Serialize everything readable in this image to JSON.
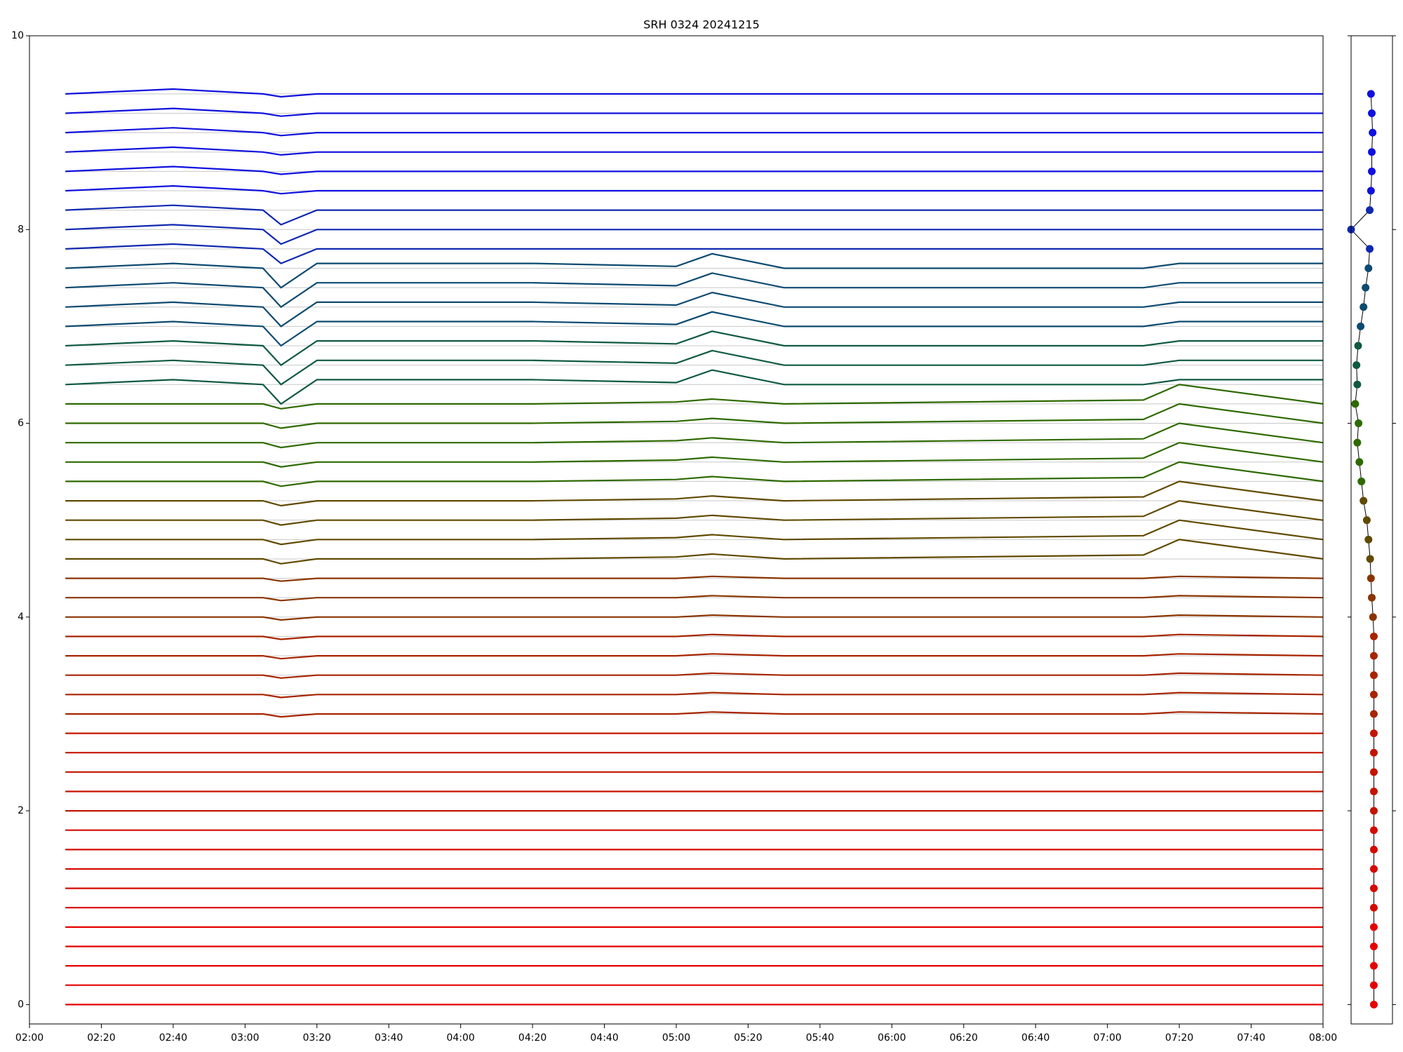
{
  "chart_data": [
    {
      "type": "line",
      "title": "SRH 0324 20241215",
      "x": [
        "02:10",
        "02:40",
        "03:05",
        "03:10",
        "03:20",
        "04:20",
        "05:00",
        "05:10",
        "05:30",
        "07:10",
        "07:20",
        "08:00"
      ],
      "xlim": [
        "02:00",
        "08:00"
      ],
      "xticks": [
        "02:00",
        "02:20",
        "02:40",
        "03:00",
        "03:20",
        "03:40",
        "04:00",
        "04:20",
        "04:40",
        "05:00",
        "05:20",
        "05:40",
        "06:00",
        "06:20",
        "06:40",
        "07:00",
        "07:20",
        "07:40",
        "08:00"
      ],
      "ylim": [
        -0.2,
        10
      ],
      "yticks": [
        0,
        2,
        4,
        6,
        8,
        10
      ],
      "grid": true,
      "series": [
        {
          "color": "#e60000",
          "values": [
            0,
            0,
            0,
            0,
            0,
            0,
            0,
            0,
            0,
            0,
            0,
            0
          ]
        },
        {
          "color": "#e60000",
          "values": [
            0.2,
            0.2,
            0.2,
            0.2,
            0.2,
            0.2,
            0.2,
            0.2,
            0.2,
            0.2,
            0.2,
            0.2
          ]
        },
        {
          "color": "#e60000",
          "values": [
            0.4,
            0.4,
            0.4,
            0.4,
            0.4,
            0.4,
            0.4,
            0.4,
            0.4,
            0.4,
            0.4,
            0.4
          ]
        },
        {
          "color": "#e60000",
          "values": [
            0.6,
            0.6,
            0.6,
            0.6,
            0.6,
            0.6,
            0.6,
            0.6,
            0.6,
            0.6,
            0.6,
            0.6
          ]
        },
        {
          "color": "#e60000",
          "values": [
            0.8,
            0.8,
            0.8,
            0.8,
            0.8,
            0.8,
            0.8,
            0.8,
            0.8,
            0.8,
            0.8,
            0.8
          ]
        },
        {
          "color": "#d50a00",
          "values": [
            1.0,
            1.0,
            1.0,
            1.0,
            1.0,
            1.0,
            1.0,
            1.0,
            1.0,
            1.0,
            1.0,
            1.0
          ]
        },
        {
          "color": "#d50a00",
          "values": [
            1.2,
            1.2,
            1.2,
            1.2,
            1.2,
            1.2,
            1.2,
            1.2,
            1.2,
            1.2,
            1.2,
            1.2
          ]
        },
        {
          "color": "#d50a00",
          "values": [
            1.4,
            1.4,
            1.4,
            1.4,
            1.4,
            1.4,
            1.4,
            1.4,
            1.4,
            1.4,
            1.4,
            1.4
          ]
        },
        {
          "color": "#d50a00",
          "values": [
            1.6,
            1.6,
            1.6,
            1.6,
            1.6,
            1.6,
            1.6,
            1.6,
            1.6,
            1.6,
            1.6,
            1.6
          ]
        },
        {
          "color": "#d50a00",
          "values": [
            1.8,
            1.8,
            1.8,
            1.8,
            1.8,
            1.8,
            1.8,
            1.8,
            1.8,
            1.8,
            1.8,
            1.8
          ]
        },
        {
          "color": "#c41400",
          "values": [
            2.0,
            2.0,
            2.0,
            2.0,
            2.0,
            2.0,
            2.0,
            2.0,
            2.0,
            2.0,
            2.0,
            2.0
          ]
        },
        {
          "color": "#c41400",
          "values": [
            2.2,
            2.2,
            2.2,
            2.2,
            2.2,
            2.2,
            2.2,
            2.2,
            2.2,
            2.2,
            2.2,
            2.2
          ]
        },
        {
          "color": "#c41400",
          "values": [
            2.4,
            2.4,
            2.4,
            2.4,
            2.4,
            2.4,
            2.4,
            2.4,
            2.4,
            2.4,
            2.4,
            2.4
          ]
        },
        {
          "color": "#c41400",
          "values": [
            2.6,
            2.6,
            2.6,
            2.6,
            2.6,
            2.6,
            2.6,
            2.6,
            2.6,
            2.6,
            2.6,
            2.6
          ]
        },
        {
          "color": "#c41400",
          "values": [
            2.8,
            2.8,
            2.8,
            2.8,
            2.8,
            2.8,
            2.8,
            2.8,
            2.8,
            2.8,
            2.8,
            2.8
          ]
        },
        {
          "color": "#a82400",
          "values": [
            3.0,
            3.0,
            3.0,
            2.97,
            3.0,
            3.0,
            3.0,
            3.02,
            3.0,
            3.0,
            3.02,
            3.0
          ]
        },
        {
          "color": "#a82400",
          "values": [
            3.2,
            3.2,
            3.2,
            3.17,
            3.2,
            3.2,
            3.2,
            3.22,
            3.2,
            3.2,
            3.22,
            3.2
          ]
        },
        {
          "color": "#a82400",
          "values": [
            3.4,
            3.4,
            3.4,
            3.37,
            3.4,
            3.4,
            3.4,
            3.42,
            3.4,
            3.4,
            3.42,
            3.4
          ]
        },
        {
          "color": "#a82400",
          "values": [
            3.6,
            3.6,
            3.6,
            3.57,
            3.6,
            3.6,
            3.6,
            3.62,
            3.6,
            3.6,
            3.62,
            3.6
          ]
        },
        {
          "color": "#a82400",
          "values": [
            3.8,
            3.8,
            3.8,
            3.77,
            3.8,
            3.8,
            3.8,
            3.82,
            3.8,
            3.8,
            3.82,
            3.8
          ]
        },
        {
          "color": "#8a3400",
          "values": [
            4.0,
            4.0,
            4.0,
            3.97,
            4.0,
            4.0,
            4.0,
            4.02,
            4.0,
            4.0,
            4.02,
            4.0
          ]
        },
        {
          "color": "#8a3400",
          "values": [
            4.2,
            4.2,
            4.2,
            4.17,
            4.2,
            4.2,
            4.2,
            4.22,
            4.2,
            4.2,
            4.22,
            4.2
          ]
        },
        {
          "color": "#8a3400",
          "values": [
            4.4,
            4.4,
            4.4,
            4.37,
            4.4,
            4.4,
            4.4,
            4.42,
            4.4,
            4.4,
            4.42,
            4.4
          ]
        },
        {
          "color": "#604a00",
          "values": [
            4.6,
            4.6,
            4.6,
            4.55,
            4.6,
            4.6,
            4.62,
            4.65,
            4.6,
            4.64,
            4.8,
            4.6
          ]
        },
        {
          "color": "#604a00",
          "values": [
            4.8,
            4.8,
            4.8,
            4.75,
            4.8,
            4.8,
            4.82,
            4.85,
            4.8,
            4.84,
            5.0,
            4.8
          ]
        },
        {
          "color": "#604a00",
          "values": [
            5.0,
            5.0,
            5.0,
            4.95,
            5.0,
            5.0,
            5.02,
            5.05,
            5.0,
            5.04,
            5.2,
            5.0
          ]
        },
        {
          "color": "#604a00",
          "values": [
            5.2,
            5.2,
            5.2,
            5.15,
            5.2,
            5.2,
            5.22,
            5.25,
            5.2,
            5.24,
            5.4,
            5.2
          ]
        },
        {
          "color": "#2e6a00",
          "values": [
            5.4,
            5.4,
            5.4,
            5.35,
            5.4,
            5.4,
            5.42,
            5.45,
            5.4,
            5.44,
            5.6,
            5.4
          ]
        },
        {
          "color": "#2e6a00",
          "values": [
            5.6,
            5.6,
            5.6,
            5.55,
            5.6,
            5.6,
            5.62,
            5.65,
            5.6,
            5.64,
            5.8,
            5.6
          ]
        },
        {
          "color": "#2e6a00",
          "values": [
            5.8,
            5.8,
            5.8,
            5.75,
            5.8,
            5.8,
            5.82,
            5.85,
            5.8,
            5.84,
            6.0,
            5.8
          ]
        },
        {
          "color": "#2e6a00",
          "values": [
            6.0,
            6.0,
            6.0,
            5.95,
            6.0,
            6.0,
            6.02,
            6.05,
            6.0,
            6.04,
            6.2,
            6.0
          ]
        },
        {
          "color": "#2e6a00",
          "values": [
            6.2,
            6.2,
            6.2,
            6.15,
            6.2,
            6.2,
            6.22,
            6.25,
            6.2,
            6.24,
            6.4,
            6.2
          ]
        },
        {
          "color": "#0f5a40",
          "values": [
            6.4,
            6.45,
            6.4,
            6.2,
            6.45,
            6.45,
            6.42,
            6.55,
            6.4,
            6.4,
            6.45,
            6.45
          ]
        },
        {
          "color": "#0f5a40",
          "values": [
            6.6,
            6.65,
            6.6,
            6.4,
            6.65,
            6.65,
            6.62,
            6.75,
            6.6,
            6.6,
            6.65,
            6.65
          ]
        },
        {
          "color": "#0f5a40",
          "values": [
            6.8,
            6.85,
            6.8,
            6.6,
            6.85,
            6.85,
            6.82,
            6.95,
            6.8,
            6.8,
            6.85,
            6.85
          ]
        },
        {
          "color": "#0d4a70",
          "values": [
            7.0,
            7.05,
            7.0,
            6.8,
            7.05,
            7.05,
            7.02,
            7.15,
            7.0,
            7.0,
            7.05,
            7.05
          ]
        },
        {
          "color": "#0d4a70",
          "values": [
            7.2,
            7.25,
            7.2,
            7.0,
            7.25,
            7.25,
            7.22,
            7.35,
            7.2,
            7.2,
            7.25,
            7.25
          ]
        },
        {
          "color": "#0d4a70",
          "values": [
            7.4,
            7.45,
            7.4,
            7.2,
            7.45,
            7.45,
            7.42,
            7.55,
            7.4,
            7.4,
            7.45,
            7.45
          ]
        },
        {
          "color": "#0d4a70",
          "values": [
            7.6,
            7.65,
            7.6,
            7.4,
            7.65,
            7.65,
            7.62,
            7.75,
            7.6,
            7.6,
            7.65,
            7.65
          ]
        },
        {
          "color": "#1028b0",
          "values": [
            7.8,
            7.85,
            7.8,
            7.65,
            7.8,
            7.8,
            7.8,
            7.8,
            7.8,
            7.8,
            7.8,
            7.8
          ]
        },
        {
          "color": "#1028b0",
          "values": [
            8.0,
            8.05,
            8.0,
            7.85,
            8.0,
            8.0,
            8.0,
            8.0,
            8.0,
            8.0,
            8.0,
            8.0
          ]
        },
        {
          "color": "#1028b0",
          "values": [
            8.2,
            8.25,
            8.2,
            8.05,
            8.2,
            8.2,
            8.2,
            8.2,
            8.2,
            8.2,
            8.2,
            8.2
          ]
        },
        {
          "color": "#1010e0",
          "values": [
            8.4,
            8.45,
            8.4,
            8.37,
            8.4,
            8.4,
            8.4,
            8.4,
            8.4,
            8.4,
            8.4,
            8.4
          ]
        },
        {
          "color": "#1010e0",
          "values": [
            8.6,
            8.65,
            8.6,
            8.57,
            8.6,
            8.6,
            8.6,
            8.6,
            8.6,
            8.6,
            8.6,
            8.6
          ]
        },
        {
          "color": "#1010e0",
          "values": [
            8.8,
            8.85,
            8.8,
            8.77,
            8.8,
            8.8,
            8.8,
            8.8,
            8.8,
            8.8,
            8.8,
            8.8
          ]
        },
        {
          "color": "#1010e0",
          "values": [
            9.0,
            9.05,
            9.0,
            8.97,
            9.0,
            9.0,
            9.0,
            9.0,
            9.0,
            9.0,
            9.0,
            9.0
          ]
        },
        {
          "color": "#1010e0",
          "values": [
            9.2,
            9.25,
            9.2,
            9.17,
            9.2,
            9.2,
            9.2,
            9.2,
            9.2,
            9.2,
            9.2,
            9.2
          ]
        },
        {
          "color": "#1010e0",
          "values": [
            9.4,
            9.45,
            9.4,
            9.37,
            9.4,
            9.4,
            9.4,
            9.4,
            9.4,
            9.4,
            9.4,
            9.4
          ]
        }
      ]
    },
    {
      "type": "scatter",
      "xlim": [
        0,
        1
      ],
      "ylim": [
        -0.2,
        10
      ],
      "color": "#000000",
      "x": [
        0.55,
        0.55,
        0.55,
        0.55,
        0.55,
        0.55,
        0.55,
        0.55,
        0.55,
        0.55,
        0.55,
        0.55,
        0.55,
        0.55,
        0.55,
        0.55,
        0.55,
        0.55,
        0.55,
        0.55,
        0.53,
        0.5,
        0.48,
        0.46,
        0.42,
        0.38,
        0.3,
        0.25,
        0.2,
        0.15,
        0.18,
        0.1,
        0.15,
        0.13,
        0.17,
        0.23,
        0.3,
        0.35,
        0.42,
        0.45,
        0.0,
        0.45,
        0.48,
        0.5,
        0.5,
        0.52,
        0.5,
        0.48
      ],
      "y": [
        0,
        0.2,
        0.4,
        0.6,
        0.8,
        1.0,
        1.2,
        1.4,
        1.6,
        1.8,
        2.0,
        2.2,
        2.4,
        2.6,
        2.8,
        3.0,
        3.2,
        3.4,
        3.6,
        3.8,
        4.0,
        4.2,
        4.4,
        4.6,
        4.8,
        5.0,
        5.2,
        5.4,
        5.6,
        5.8,
        6.0,
        6.2,
        6.4,
        6.6,
        6.8,
        7.0,
        7.2,
        7.4,
        7.6,
        7.8,
        8.0,
        8.2,
        8.4,
        8.6,
        8.8,
        9.0,
        9.2,
        9.4
      ]
    }
  ]
}
